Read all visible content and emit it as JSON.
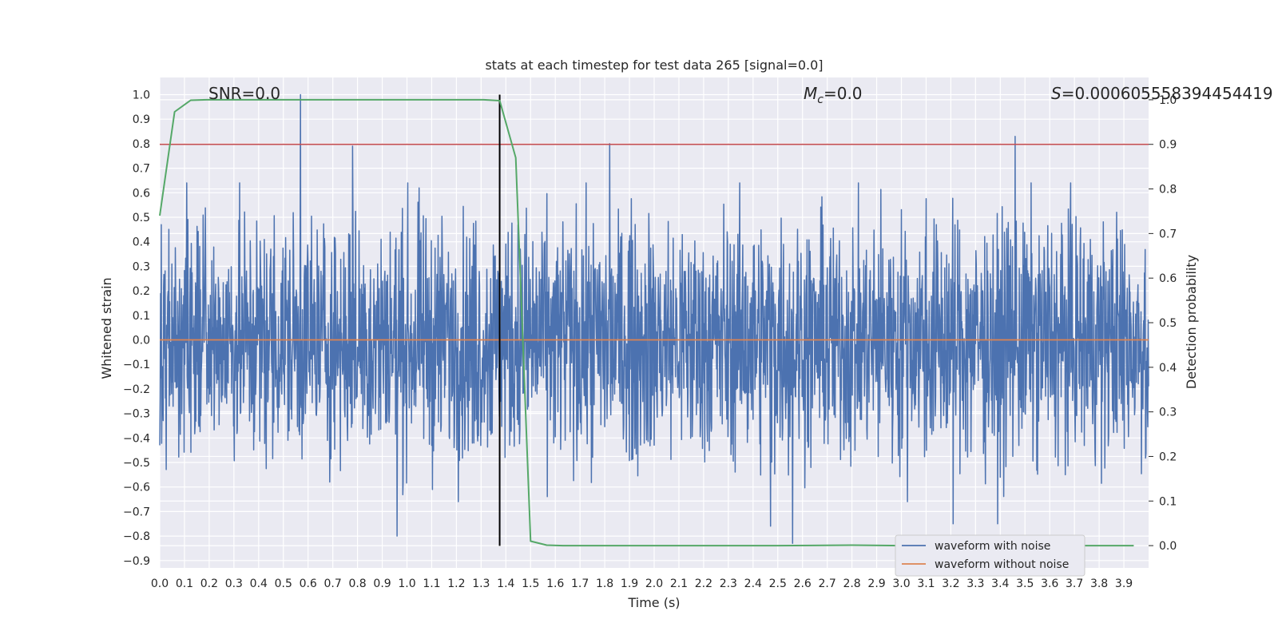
{
  "chart_data": {
    "type": "line",
    "title": "stats at each timestep for test data 265 [signal=0.0]",
    "xlabel": "Time (s)",
    "ylabel": "Whitened strain",
    "y2label": "Detection probability",
    "xlim": [
      0.0,
      4.0
    ],
    "ylim": [
      -0.93,
      1.07
    ],
    "y2lim": [
      -0.05,
      1.05
    ],
    "x_ticks": [
      "0.0",
      "0.1",
      "0.2",
      "0.3",
      "0.4",
      "0.5",
      "0.6",
      "0.7",
      "0.8",
      "0.9",
      "1.0",
      "1.1",
      "1.2",
      "1.3",
      "1.4",
      "1.5",
      "1.6",
      "1.7",
      "1.8",
      "1.9",
      "2.0",
      "2.1",
      "2.2",
      "2.3",
      "2.4",
      "2.5",
      "2.6",
      "2.7",
      "2.8",
      "2.9",
      "3.0",
      "3.1",
      "3.2",
      "3.3",
      "3.4",
      "3.5",
      "3.6",
      "3.7",
      "3.8",
      "3.9"
    ],
    "y_ticks": [
      "1.0",
      "0.9",
      "0.8",
      "0.7",
      "0.6",
      "0.5",
      "0.4",
      "0.3",
      "0.2",
      "0.1",
      "0.0",
      "−0.1",
      "−0.2",
      "−0.3",
      "−0.4",
      "−0.5",
      "−0.6",
      "−0.7",
      "−0.8",
      "−0.9"
    ],
    "y2_ticks": [
      "1.0",
      "0.9",
      "0.8",
      "0.7",
      "0.6",
      "0.5",
      "0.4",
      "0.3",
      "0.2",
      "0.1",
      "0.0"
    ],
    "grid": true,
    "legend_position": "bottom-right",
    "annotations": {
      "snr_label": "SNR=0.0",
      "mc_symbol": "M",
      "mc_sub": "c",
      "mc_value": "=0.0",
      "s_symbol": "S",
      "s_value": "=0.000605558394454419"
    },
    "series": [
      {
        "name": "waveform with noise",
        "axis": "left",
        "color": "#4c72b0",
        "note": "dense whitened noise, roughly within -0.6..0.6 with occasional spikes",
        "peaks": [
          {
            "x": 0.57,
            "y": 1.0
          },
          {
            "x": 0.78,
            "y": 0.79
          },
          {
            "x": 1.82,
            "y": 0.8
          },
          {
            "x": 3.46,
            "y": 0.83
          },
          {
            "x": 0.96,
            "y": -0.8
          },
          {
            "x": 2.47,
            "y": -0.76
          },
          {
            "x": 2.56,
            "y": -0.83
          },
          {
            "x": 3.21,
            "y": -0.75
          },
          {
            "x": 3.39,
            "y": -0.75
          }
        ]
      },
      {
        "name": "waveform without noise",
        "axis": "left",
        "color": "#dd8452",
        "x": [
          0.0,
          4.0
        ],
        "y": [
          0.0,
          0.0
        ]
      },
      {
        "axis": "right",
        "color": "#55a868",
        "x": [
          0.0,
          0.06,
          0.125,
          0.19,
          0.25,
          1.31,
          1.375,
          1.44,
          1.5,
          1.565,
          1.63,
          2.5,
          2.8,
          3.0,
          3.94
        ],
        "y": [
          0.74,
          0.973,
          0.999,
          1.0,
          1.0,
          1.0,
          0.998,
          0.87,
          0.01,
          0.001,
          0.0,
          0.0,
          0.001,
          0.0,
          0.0
        ]
      }
    ],
    "reference_lines": [
      {
        "orientation": "horizontal",
        "axis": "right",
        "value": 0.9,
        "color": "#c44e52"
      },
      {
        "orientation": "vertical",
        "axis": "x",
        "value": 1.375,
        "y_from": -0.84,
        "y_to": 1.0,
        "color": "#000000"
      }
    ]
  }
}
